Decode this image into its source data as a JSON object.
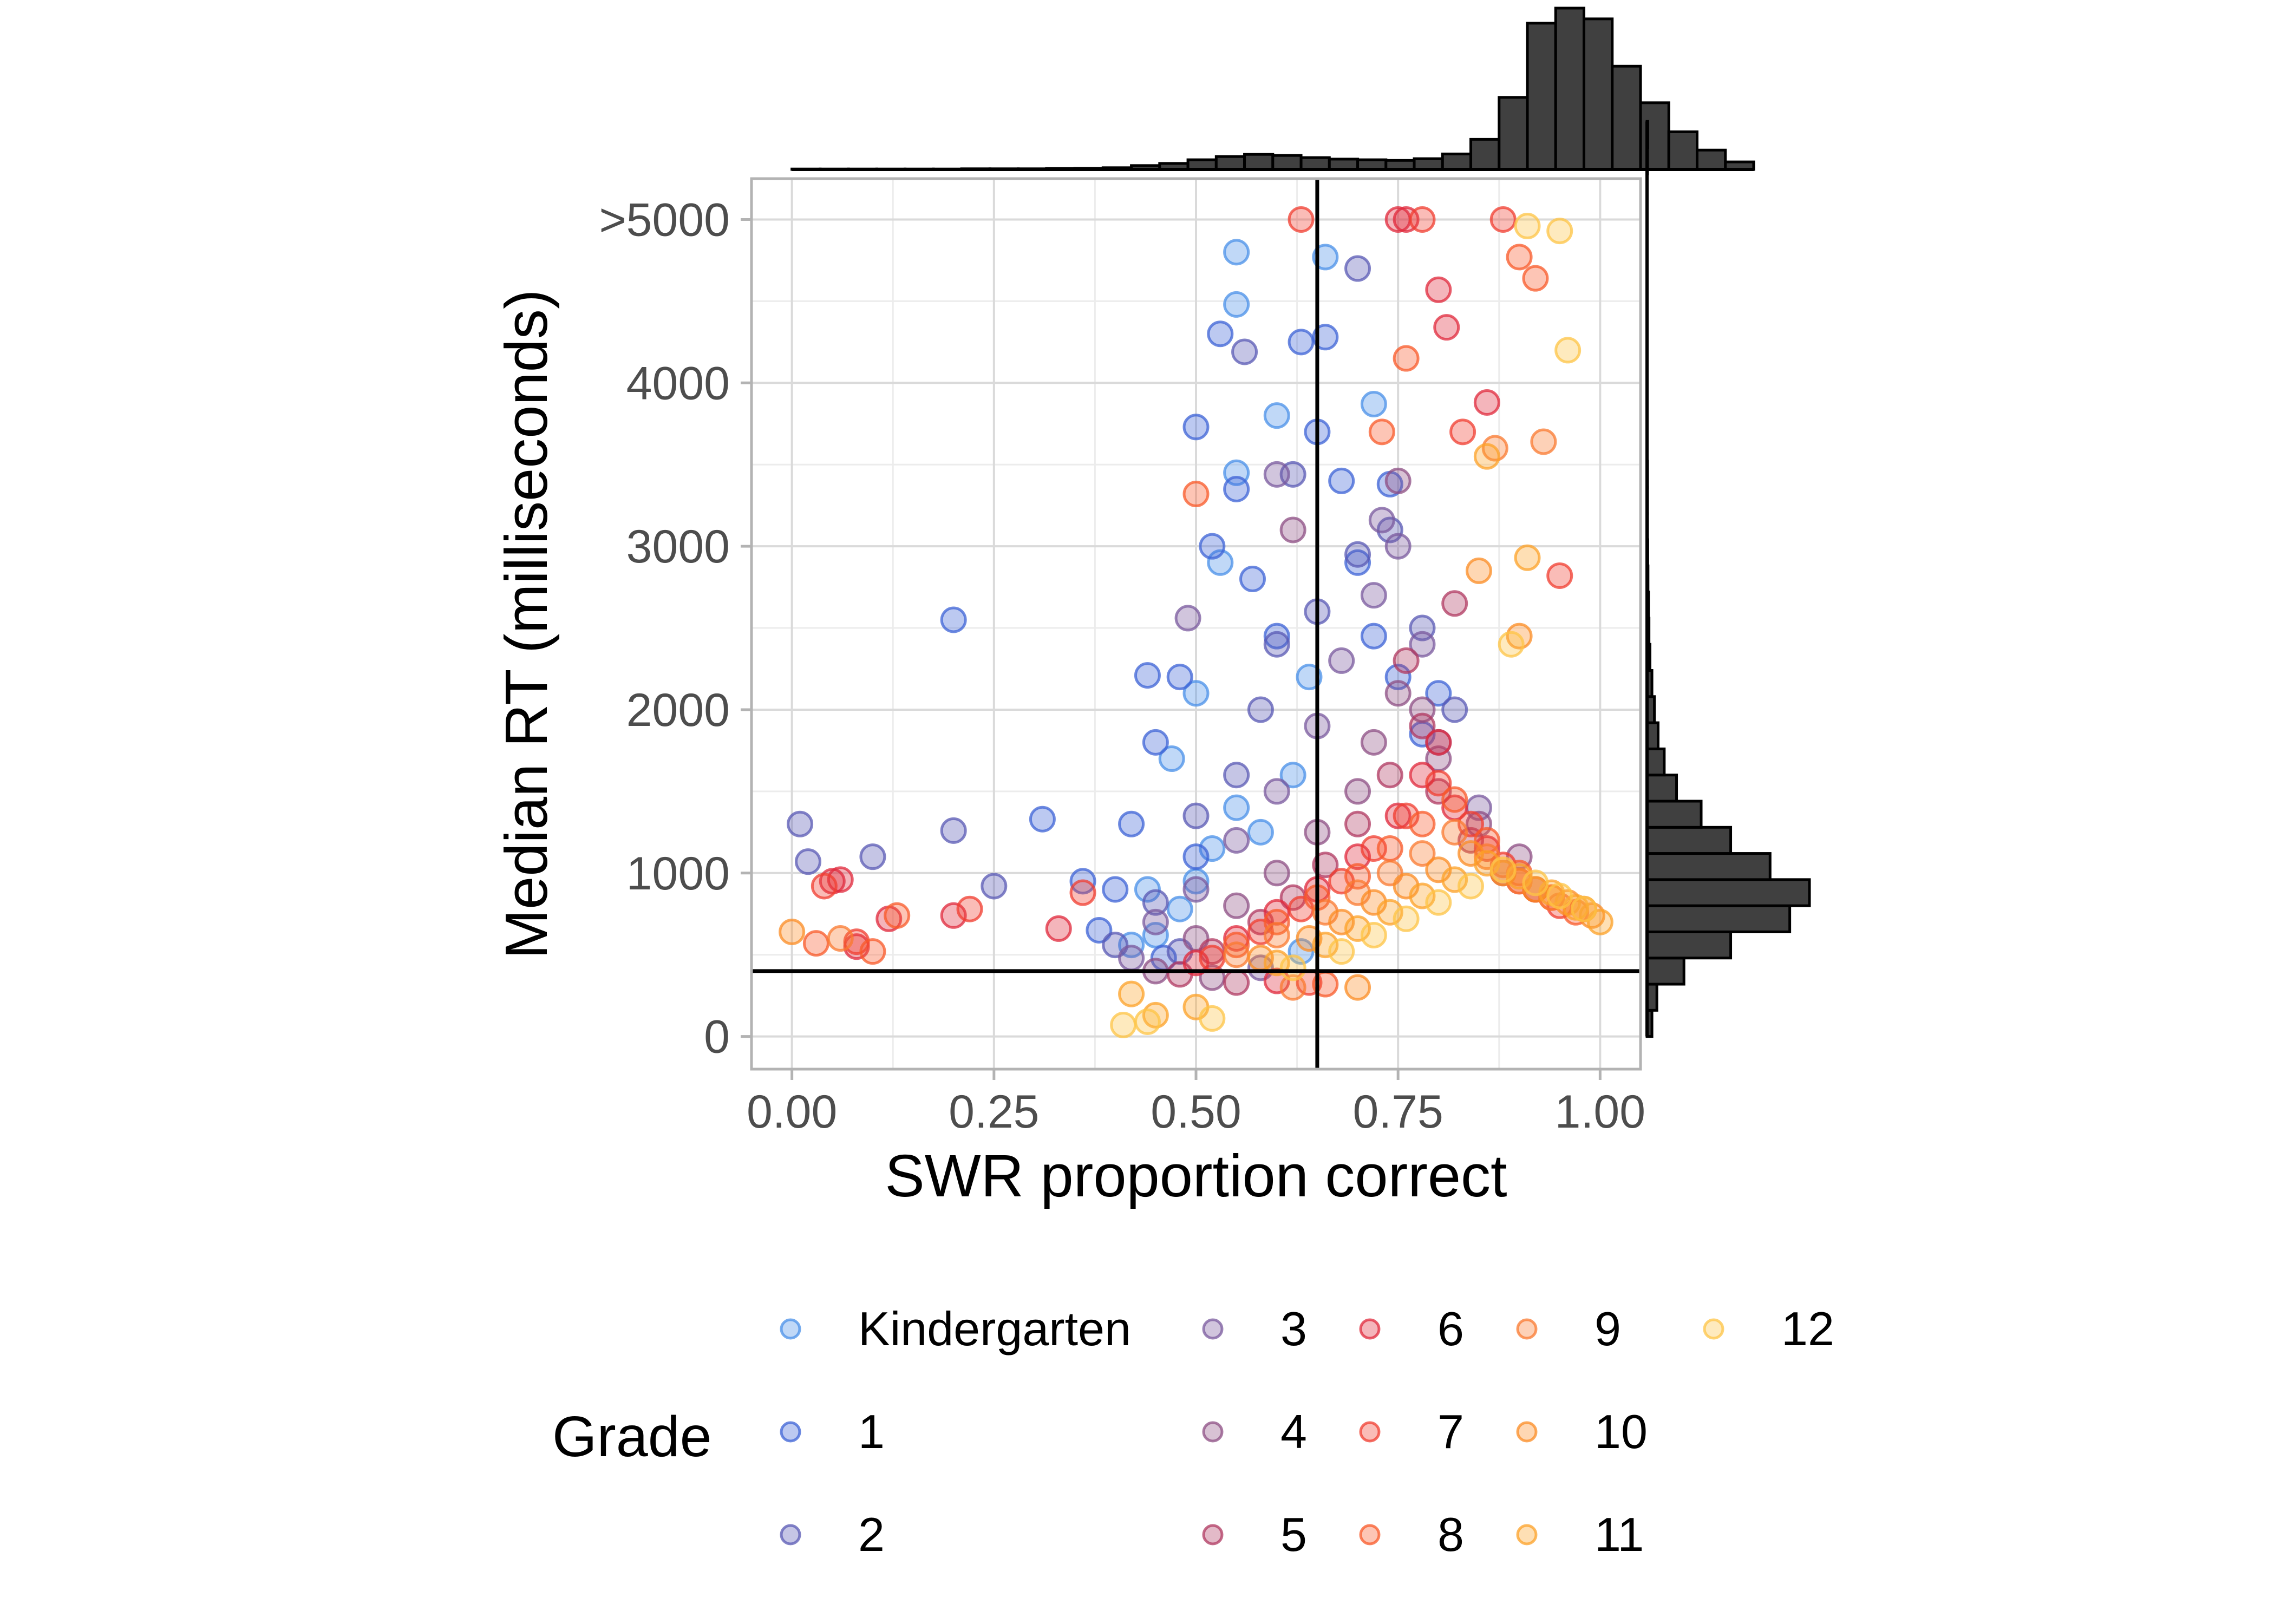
{
  "chart_data": {
    "type": "scatter",
    "xlabel": "SWR proportion correct",
    "ylabel": "Median RT (milliseconds)",
    "xlim": [
      -0.05,
      1.05
    ],
    "ylim": [
      -200,
      5250
    ],
    "x_ticks": [
      0.0,
      0.25,
      0.5,
      0.75,
      1.0
    ],
    "x_tick_labels": [
      "0.00",
      "0.25",
      "0.50",
      "0.75",
      "1.00"
    ],
    "y_ticks": [
      0,
      1000,
      2000,
      3000,
      4000,
      5000
    ],
    "y_tick_labels": [
      "0",
      "1000",
      "2000",
      "3000",
      "4000",
      ">5000"
    ],
    "grid": true,
    "reference_lines": {
      "vertical_x": 0.65,
      "horizontal_y": 400
    },
    "legend": {
      "title": "Grade",
      "placement": "bottom",
      "entries": [
        {
          "label": "Kindergarten",
          "color": "#4a90e8"
        },
        {
          "label": "1",
          "color": "#3e63d6"
        },
        {
          "label": "2",
          "color": "#5a5ab4"
        },
        {
          "label": "3",
          "color": "#7a5a9e"
        },
        {
          "label": "4",
          "color": "#8e4f84"
        },
        {
          "label": "5",
          "color": "#b03a62"
        },
        {
          "label": "6",
          "color": "#e02a3c"
        },
        {
          "label": "7",
          "color": "#f03e30"
        },
        {
          "label": "8",
          "color": "#f85a2a"
        },
        {
          "label": "9",
          "color": "#fa7a30"
        },
        {
          "label": "10",
          "color": "#fb8c24"
        },
        {
          "label": "11",
          "color": "#fca228"
        },
        {
          "label": "12",
          "color": "#fdc446"
        }
      ]
    },
    "series": [
      {
        "name": "Kindergarten",
        "points": [
          [
            0.45,
            620
          ],
          [
            0.48,
            780
          ],
          [
            0.5,
            950
          ],
          [
            0.52,
            1150
          ],
          [
            0.55,
            1400
          ],
          [
            0.47,
            1700
          ],
          [
            0.5,
            2100
          ],
          [
            0.53,
            2900
          ],
          [
            0.55,
            3450
          ],
          [
            0.6,
            3800
          ],
          [
            0.55,
            4480
          ],
          [
            0.55,
            4800
          ],
          [
            0.42,
            560
          ],
          [
            0.44,
            900
          ],
          [
            0.58,
            1250
          ],
          [
            0.62,
            1600
          ],
          [
            0.64,
            2200
          ],
          [
            0.66,
            4770
          ],
          [
            0.72,
            3870
          ],
          [
            0.63,
            520
          ]
        ]
      },
      {
        "name": "1",
        "points": [
          [
            0.38,
            650
          ],
          [
            0.4,
            900
          ],
          [
            0.42,
            1300
          ],
          [
            0.45,
            1800
          ],
          [
            0.48,
            2200
          ],
          [
            0.5,
            1100
          ],
          [
            0.52,
            3000
          ],
          [
            0.55,
            3350
          ],
          [
            0.57,
            2800
          ],
          [
            0.6,
            2450
          ],
          [
            0.63,
            4250
          ],
          [
            0.66,
            4280
          ],
          [
            0.68,
            3400
          ],
          [
            0.7,
            2900
          ],
          [
            0.72,
            2450
          ],
          [
            0.75,
            2200
          ],
          [
            0.78,
            1850
          ],
          [
            0.5,
            3730
          ],
          [
            0.53,
            4300
          ],
          [
            0.2,
            2550
          ],
          [
            0.31,
            1330
          ],
          [
            0.36,
            950
          ],
          [
            0.44,
            2210
          ],
          [
            0.65,
            3700
          ],
          [
            0.74,
            3380
          ],
          [
            0.8,
            2100
          ],
          [
            0.46,
            480
          ]
        ]
      },
      {
        "name": "2",
        "points": [
          [
            0.01,
            1300
          ],
          [
            0.02,
            1070
          ],
          [
            0.1,
            1100
          ],
          [
            0.2,
            1260
          ],
          [
            0.25,
            920
          ],
          [
            0.4,
            560
          ],
          [
            0.45,
            820
          ],
          [
            0.5,
            1350
          ],
          [
            0.55,
            1600
          ],
          [
            0.58,
            2000
          ],
          [
            0.6,
            2400
          ],
          [
            0.65,
            2600
          ],
          [
            0.7,
            4700
          ],
          [
            0.7,
            2950
          ],
          [
            0.74,
            3100
          ],
          [
            0.78,
            2500
          ],
          [
            0.82,
            2000
          ],
          [
            0.56,
            4190
          ],
          [
            0.62,
            3440
          ],
          [
            0.48,
            520
          ]
        ]
      },
      {
        "name": "3",
        "points": [
          [
            0.42,
            480
          ],
          [
            0.45,
            700
          ],
          [
            0.5,
            900
          ],
          [
            0.55,
            1200
          ],
          [
            0.6,
            1500
          ],
          [
            0.65,
            1900
          ],
          [
            0.68,
            2300
          ],
          [
            0.72,
            2700
          ],
          [
            0.75,
            3000
          ],
          [
            0.78,
            2400
          ],
          [
            0.8,
            1800
          ],
          [
            0.85,
            1400
          ],
          [
            0.6,
            3440
          ],
          [
            0.73,
            3160
          ],
          [
            0.49,
            2560
          ],
          [
            0.58,
            420
          ]
        ]
      },
      {
        "name": "4",
        "points": [
          [
            0.45,
            400
          ],
          [
            0.5,
            600
          ],
          [
            0.55,
            800
          ],
          [
            0.6,
            1000
          ],
          [
            0.65,
            1250
          ],
          [
            0.7,
            1500
          ],
          [
            0.72,
            1800
          ],
          [
            0.75,
            2100
          ],
          [
            0.78,
            2000
          ],
          [
            0.8,
            1700
          ],
          [
            0.85,
            1300
          ],
          [
            0.9,
            1100
          ],
          [
            0.75,
            3400
          ],
          [
            0.62,
            3100
          ],
          [
            0.52,
            360
          ]
        ]
      },
      {
        "name": "5",
        "points": [
          [
            0.48,
            380
          ],
          [
            0.52,
            520
          ],
          [
            0.58,
            700
          ],
          [
            0.62,
            850
          ],
          [
            0.66,
            1050
          ],
          [
            0.7,
            1300
          ],
          [
            0.74,
            1600
          ],
          [
            0.78,
            1900
          ],
          [
            0.8,
            1500
          ],
          [
            0.84,
            1200
          ],
          [
            0.88,
            1000
          ],
          [
            0.92,
            900
          ],
          [
            0.76,
            2300
          ],
          [
            0.82,
            2650
          ],
          [
            0.55,
            330
          ]
        ]
      },
      {
        "name": "6",
        "points": [
          [
            0.05,
            950
          ],
          [
            0.06,
            960
          ],
          [
            0.08,
            550
          ],
          [
            0.12,
            720
          ],
          [
            0.2,
            740
          ],
          [
            0.33,
            660
          ],
          [
            0.5,
            450
          ],
          [
            0.55,
            600
          ],
          [
            0.6,
            760
          ],
          [
            0.65,
            900
          ],
          [
            0.7,
            1100
          ],
          [
            0.75,
            1350
          ],
          [
            0.78,
            1600
          ],
          [
            0.8,
            1800
          ],
          [
            0.82,
            1400
          ],
          [
            0.86,
            1150
          ],
          [
            0.9,
            950
          ],
          [
            0.81,
            4340
          ],
          [
            0.8,
            4570
          ],
          [
            0.75,
            5000
          ],
          [
            0.76,
            5000
          ],
          [
            0.86,
            3880
          ],
          [
            0.6,
            340
          ]
        ]
      },
      {
        "name": "7",
        "points": [
          [
            0.04,
            920
          ],
          [
            0.08,
            580
          ],
          [
            0.22,
            780
          ],
          [
            0.36,
            880
          ],
          [
            0.52,
            480
          ],
          [
            0.58,
            640
          ],
          [
            0.63,
            780
          ],
          [
            0.68,
            950
          ],
          [
            0.72,
            1150
          ],
          [
            0.76,
            1350
          ],
          [
            0.8,
            1550
          ],
          [
            0.84,
            1300
          ],
          [
            0.88,
            1050
          ],
          [
            0.92,
            900
          ],
          [
            0.95,
            800
          ],
          [
            0.63,
            5000
          ],
          [
            0.78,
            5000
          ],
          [
            0.88,
            5000
          ],
          [
            0.83,
            3700
          ],
          [
            0.95,
            2820
          ],
          [
            0.64,
            330
          ]
        ]
      },
      {
        "name": "8",
        "points": [
          [
            0.03,
            570
          ],
          [
            0.1,
            520
          ],
          [
            0.13,
            740
          ],
          [
            0.5,
            3320
          ],
          [
            0.55,
            560
          ],
          [
            0.6,
            700
          ],
          [
            0.65,
            850
          ],
          [
            0.7,
            980
          ],
          [
            0.74,
            1150
          ],
          [
            0.78,
            1300
          ],
          [
            0.82,
            1450
          ],
          [
            0.86,
            1200
          ],
          [
            0.9,
            1000
          ],
          [
            0.94,
            850
          ],
          [
            0.97,
            760
          ],
          [
            0.73,
            3700
          ],
          [
            0.76,
            4150
          ],
          [
            0.9,
            4770
          ],
          [
            0.92,
            4640
          ],
          [
            0.66,
            320
          ]
        ]
      },
      {
        "name": "9",
        "points": [
          [
            0.06,
            600
          ],
          [
            0.55,
            500
          ],
          [
            0.6,
            620
          ],
          [
            0.66,
            760
          ],
          [
            0.7,
            880
          ],
          [
            0.74,
            1000
          ],
          [
            0.78,
            1120
          ],
          [
            0.82,
            1250
          ],
          [
            0.86,
            1100
          ],
          [
            0.9,
            950
          ],
          [
            0.94,
            850
          ],
          [
            0.98,
            780
          ],
          [
            0.87,
            3600
          ],
          [
            0.93,
            3640
          ],
          [
            0.62,
            300
          ]
        ]
      },
      {
        "name": "10",
        "points": [
          [
            0.0,
            640
          ],
          [
            0.58,
            480
          ],
          [
            0.64,
            600
          ],
          [
            0.68,
            700
          ],
          [
            0.72,
            820
          ],
          [
            0.76,
            920
          ],
          [
            0.8,
            1020
          ],
          [
            0.84,
            1120
          ],
          [
            0.88,
            1000
          ],
          [
            0.92,
            900
          ],
          [
            0.96,
            820
          ],
          [
            0.99,
            740
          ],
          [
            0.85,
            2850
          ],
          [
            0.9,
            2450
          ],
          [
            0.7,
            300
          ]
        ]
      },
      {
        "name": "11",
        "points": [
          [
            0.42,
            260
          ],
          [
            0.45,
            130
          ],
          [
            0.6,
            450
          ],
          [
            0.66,
            560
          ],
          [
            0.7,
            660
          ],
          [
            0.74,
            760
          ],
          [
            0.78,
            860
          ],
          [
            0.82,
            960
          ],
          [
            0.86,
            1060
          ],
          [
            0.9,
            980
          ],
          [
            0.94,
            880
          ],
          [
            0.97,
            790
          ],
          [
            1.0,
            700
          ],
          [
            0.86,
            3550
          ],
          [
            0.91,
            2930
          ],
          [
            0.5,
            180
          ]
        ]
      },
      {
        "name": "12",
        "points": [
          [
            0.41,
            70
          ],
          [
            0.44,
            90
          ],
          [
            0.62,
            420
          ],
          [
            0.68,
            520
          ],
          [
            0.72,
            620
          ],
          [
            0.76,
            720
          ],
          [
            0.8,
            820
          ],
          [
            0.84,
            920
          ],
          [
            0.88,
            1020
          ],
          [
            0.92,
            940
          ],
          [
            0.95,
            860
          ],
          [
            0.98,
            780
          ],
          [
            0.91,
            4960
          ],
          [
            0.95,
            4930
          ],
          [
            0.96,
            4200
          ],
          [
            0.89,
            2400
          ],
          [
            0.52,
            110
          ]
        ]
      }
    ],
    "x_histogram": {
      "bin_width": 0.035,
      "counts": [
        2,
        2,
        2,
        2,
        2,
        2,
        3,
        3,
        3,
        4,
        5,
        8,
        18,
        28,
        45,
        60,
        70,
        65,
        55,
        48,
        45,
        42,
        50,
        72,
        140,
        335,
        680,
        750,
        700,
        480,
        310,
        175,
        90,
        35
      ]
    },
    "y_histogram": {
      "bin_width": 160,
      "counts": [
        20,
        40,
        150,
        340,
        580,
        660,
        500,
        340,
        220,
        120,
        70,
        45,
        30,
        20,
        12,
        8,
        6,
        4,
        3,
        2,
        2,
        2,
        1,
        1,
        1,
        1,
        1,
        1,
        1,
        1,
        1,
        1,
        1,
        2,
        3
      ]
    }
  }
}
